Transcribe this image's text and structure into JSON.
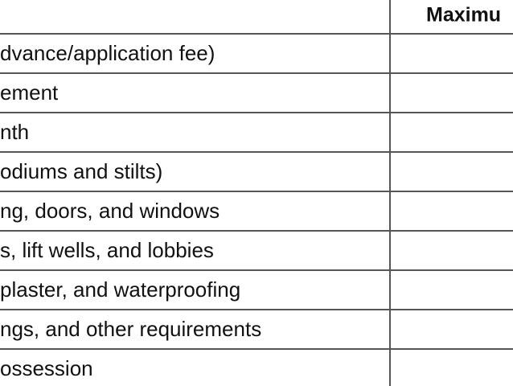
{
  "table": {
    "header": {
      "title": "Maximu"
    },
    "rows": [
      "dvance/application fee)",
      "ement",
      "nth",
      "odiums and stilts)",
      "ng, doors, and windows",
      "s, lift wells, and lobbies",
      "plaster, and waterproofing",
      "ngs, and other requirements",
      "ossession"
    ]
  }
}
